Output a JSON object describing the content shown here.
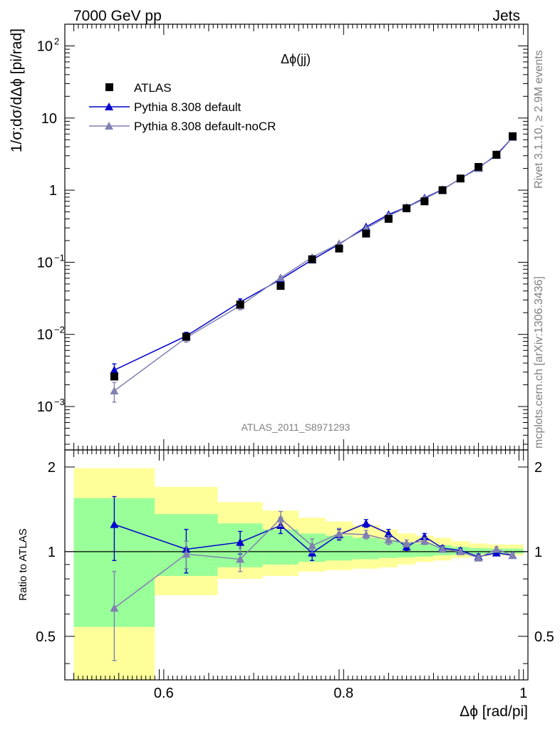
{
  "header": {
    "left": "7000 GeV pp",
    "right": "Jets"
  },
  "side": {
    "rivet": "Rivet 3.1.10, ≥ 2.9M events",
    "mcplots": "mcplots.cern.ch [arXiv:1306.3436]"
  },
  "chart_data": [
    {
      "type": "scatter",
      "panel": "main",
      "title": "Δϕ(jj)",
      "ylabel": "1/σ;dσ/dΔϕ [pi/rad]",
      "xlim": [
        0.49,
        1.005
      ],
      "ylim": [
        0.00025,
        200
      ],
      "yscale": "log",
      "legend_position": "top-left",
      "watermark": "ATLAS_2011_S8971293",
      "x": [
        0.545,
        0.625,
        0.685,
        0.73,
        0.765,
        0.795,
        0.825,
        0.85,
        0.87,
        0.89,
        0.91,
        0.93,
        0.95,
        0.97,
        0.988
      ],
      "series": [
        {
          "name": "ATLAS",
          "color": "#000000",
          "marker": "square",
          "values": [
            0.0026,
            0.0093,
            0.026,
            0.047,
            0.11,
            0.155,
            0.25,
            0.4,
            0.56,
            0.7,
            1.0,
            1.45,
            2.1,
            3.1,
            5.6
          ]
        },
        {
          "name": "Pythia 8.308 default",
          "color": "#0000cc",
          "marker": "triangle",
          "values": [
            0.0032,
            0.0095,
            0.028,
            0.058,
            0.108,
            0.178,
            0.31,
            0.46,
            0.58,
            0.78,
            1.02,
            1.45,
            2.05,
            3.05,
            5.4
          ],
          "err": [
            0.0007,
            0.0012,
            0.003,
            0.003,
            0.006,
            0.008,
            0.012,
            0.014,
            0.02,
            0.02,
            0.03,
            0.04,
            0.05,
            0.08,
            0.12
          ]
        },
        {
          "name": "Pythia 8.308 default-noCR",
          "color": "#8080b3",
          "marker": "triangle",
          "values": [
            0.00165,
            0.009,
            0.025,
            0.061,
            0.117,
            0.182,
            0.295,
            0.44,
            0.575,
            0.76,
            1.01,
            1.45,
            2.0,
            3.15,
            5.4
          ],
          "err": [
            0.0005,
            0.0012,
            0.003,
            0.003,
            0.006,
            0.008,
            0.012,
            0.014,
            0.02,
            0.02,
            0.03,
            0.04,
            0.05,
            0.08,
            0.12
          ]
        }
      ]
    },
    {
      "type": "scatter",
      "panel": "ratio",
      "ylabel": "Ratio to ATLAS",
      "xlabel": "Δϕ [rad/pi]",
      "xlim": [
        0.49,
        1.005
      ],
      "ylim": [
        0.35,
        2.3
      ],
      "xticks": [
        "0.6",
        "0.8",
        "1"
      ],
      "yticks": [
        "0.5",
        "1",
        "2"
      ],
      "reference_line": 1,
      "bands": {
        "bin_edges": [
          0.5,
          0.59,
          0.66,
          0.71,
          0.75,
          0.78,
          0.81,
          0.84,
          0.86,
          0.88,
          0.9,
          0.92,
          0.94,
          0.96,
          0.98,
          1.0
        ],
        "yellow_lo": [
          0.35,
          0.7,
          0.8,
          0.82,
          0.85,
          0.86,
          0.87,
          0.88,
          0.9,
          0.92,
          0.93,
          0.95,
          0.96,
          0.97,
          0.97
        ],
        "yellow_hi": [
          1.98,
          1.7,
          1.5,
          1.4,
          1.32,
          1.28,
          1.24,
          1.2,
          1.16,
          1.14,
          1.12,
          1.09,
          1.07,
          1.06,
          1.06
        ],
        "green_lo": [
          0.54,
          0.82,
          0.88,
          0.9,
          0.92,
          0.93,
          0.94,
          0.95,
          0.955,
          0.96,
          0.97,
          0.975,
          0.98,
          0.985,
          0.985
        ],
        "green_hi": [
          1.55,
          1.36,
          1.26,
          1.2,
          1.16,
          1.14,
          1.12,
          1.1,
          1.08,
          1.07,
          1.055,
          1.04,
          1.03,
          1.025,
          1.025
        ]
      },
      "x": [
        0.545,
        0.625,
        0.685,
        0.73,
        0.765,
        0.795,
        0.825,
        0.85,
        0.87,
        0.89,
        0.91,
        0.93,
        0.95,
        0.97,
        0.988
      ],
      "series": [
        {
          "name": "Pythia 8.308 default",
          "color": "#0000cc",
          "values": [
            1.25,
            1.02,
            1.08,
            1.24,
            0.99,
            1.15,
            1.26,
            1.16,
            1.04,
            1.13,
            1.03,
            1.01,
            0.96,
            0.99,
            0.97
          ],
          "err": [
            0.32,
            0.18,
            0.1,
            0.08,
            0.06,
            0.05,
            0.04,
            0.04,
            0.03,
            0.03,
            0.02,
            0.02,
            0.02,
            0.02,
            0.02
          ]
        },
        {
          "name": "Pythia 8.308 default-noCR",
          "color": "#8080b3",
          "values": [
            0.63,
            0.98,
            0.94,
            1.31,
            1.05,
            1.16,
            1.15,
            1.1,
            1.07,
            1.09,
            1.02,
            1.0,
            0.95,
            1.02,
            0.97
          ],
          "err": [
            0.22,
            0.11,
            0.09,
            0.08,
            0.06,
            0.05,
            0.04,
            0.04,
            0.03,
            0.03,
            0.02,
            0.02,
            0.02,
            0.02,
            0.02
          ]
        }
      ]
    }
  ]
}
